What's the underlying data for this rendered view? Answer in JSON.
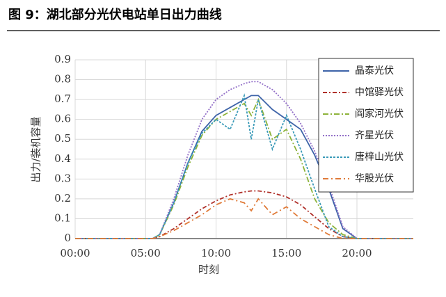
{
  "chart_data": {
    "type": "line",
    "title": "图 9：湖北部分光伏电站单日出力曲线",
    "y_label": "出力/装机容量",
    "x_label": "时刻",
    "x": [
      0,
      2,
      4,
      5.5,
      6,
      7,
      8,
      9,
      10,
      11,
      12,
      12.5,
      13,
      14,
      15,
      16,
      17,
      18,
      19,
      20,
      22,
      24
    ],
    "xlim": [
      0,
      24
    ],
    "xticks": [
      {
        "value": 0,
        "label": "00:00"
      },
      {
        "value": 5,
        "label": "05:00"
      },
      {
        "value": 10,
        "label": "10:00"
      },
      {
        "value": 15,
        "label": "15:00"
      },
      {
        "value": 20,
        "label": "20:00"
      }
    ],
    "ylim": [
      0,
      0.9
    ],
    "yticks": [
      0,
      0.1,
      0.2,
      0.3,
      0.4,
      0.5,
      0.6,
      0.7,
      0.8,
      0.9
    ],
    "grid": true,
    "legend": "upper right",
    "series": [
      {
        "name": "晶泰光伏",
        "color": "#3d63a8",
        "values": [
          0,
          0,
          0,
          0,
          0.02,
          0.18,
          0.38,
          0.54,
          0.62,
          0.66,
          0.7,
          0.72,
          0.72,
          0.65,
          0.6,
          0.55,
          0.42,
          0.25,
          0.05,
          0,
          0,
          0
        ]
      },
      {
        "name": "中馆驿光伏",
        "color": "#b0302a",
        "values": [
          0,
          0,
          0,
          0,
          0.01,
          0.05,
          0.1,
          0.15,
          0.19,
          0.22,
          0.235,
          0.24,
          0.24,
          0.23,
          0.21,
          0.17,
          0.11,
          0.05,
          0.01,
          0,
          0,
          0
        ]
      },
      {
        "name": "阎家河光伏",
        "color": "#8db33a",
        "values": [
          0,
          0,
          0,
          0,
          0.02,
          0.17,
          0.36,
          0.52,
          0.6,
          0.64,
          0.68,
          0.62,
          0.7,
          0.5,
          0.55,
          0.4,
          0.2,
          0.08,
          0.02,
          0,
          0,
          0
        ]
      },
      {
        "name": "齐星光伏",
        "color": "#9370c8",
        "values": [
          0,
          0,
          0,
          0,
          0.02,
          0.2,
          0.42,
          0.6,
          0.7,
          0.75,
          0.78,
          0.79,
          0.79,
          0.75,
          0.68,
          0.58,
          0.44,
          0.27,
          0.06,
          0,
          0,
          0
        ]
      },
      {
        "name": "唐梓山光伏",
        "color": "#3a9ab8",
        "values": [
          0,
          0,
          0,
          0,
          0.02,
          0.18,
          0.38,
          0.53,
          0.6,
          0.55,
          0.72,
          0.5,
          0.7,
          0.45,
          0.62,
          0.45,
          0.25,
          0.06,
          0.01,
          0,
          0,
          0
        ]
      },
      {
        "name": "华股光伏",
        "color": "#e07b39",
        "values": [
          0,
          0,
          0,
          0,
          0.01,
          0.04,
          0.08,
          0.12,
          0.17,
          0.2,
          0.18,
          0.14,
          0.2,
          0.12,
          0.16,
          0.1,
          0.06,
          0.02,
          0,
          0,
          0,
          0
        ]
      }
    ]
  }
}
